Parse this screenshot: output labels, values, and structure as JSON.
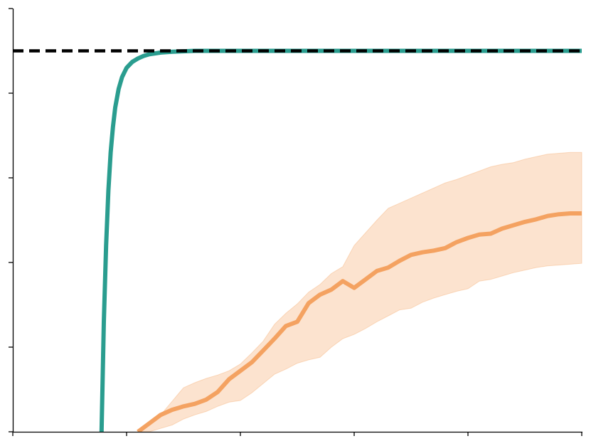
{
  "chart_data": {
    "type": "line",
    "title": "",
    "xlabel": "",
    "ylabel": "",
    "xlim": [
      0,
      5
    ],
    "ylim": [
      0,
      5
    ],
    "x_ticks": [
      0,
      1,
      2,
      3,
      4,
      5
    ],
    "y_ticks": [
      0,
      1,
      2,
      3,
      4,
      5
    ],
    "grid": false,
    "legend": "none",
    "reference_line": {
      "y": 4.5,
      "style": "dashed",
      "color": "#000000"
    },
    "series": [
      {
        "color": "#2a9d8f",
        "x": [
          0.78,
          0.8,
          0.82,
          0.84,
          0.86,
          0.88,
          0.9,
          0.93,
          0.96,
          1.0,
          1.05,
          1.1,
          1.15,
          1.2,
          1.3,
          1.4,
          1.5,
          1.6,
          1.8,
          2.0,
          3.0,
          4.0,
          5.0
        ],
        "y": [
          0.0,
          1.3,
          2.2,
          2.85,
          3.3,
          3.6,
          3.83,
          4.05,
          4.19,
          4.3,
          4.37,
          4.41,
          4.44,
          4.46,
          4.48,
          4.49,
          4.495,
          4.5,
          4.5,
          4.5,
          4.5,
          4.5,
          4.5
        ]
      },
      {
        "color": "#f4a261",
        "band_alpha": 0.3,
        "x": [
          1.1,
          1.2,
          1.3,
          1.4,
          1.5,
          1.6,
          1.7,
          1.8,
          1.9,
          2.0,
          2.1,
          2.2,
          2.3,
          2.4,
          2.5,
          2.6,
          2.7,
          2.8,
          2.9,
          3.0,
          3.1,
          3.2,
          3.3,
          3.4,
          3.5,
          3.6,
          3.7,
          3.8,
          3.9,
          4.0,
          4.1,
          4.2,
          4.3,
          4.4,
          4.5,
          4.6,
          4.7,
          4.8,
          4.9,
          5.0
        ],
        "y": [
          0.0,
          0.1,
          0.2,
          0.26,
          0.3,
          0.33,
          0.38,
          0.47,
          0.62,
          0.72,
          0.82,
          0.96,
          1.1,
          1.25,
          1.3,
          1.52,
          1.62,
          1.68,
          1.78,
          1.7,
          1.8,
          1.9,
          1.94,
          2.02,
          2.09,
          2.12,
          2.14,
          2.17,
          2.24,
          2.29,
          2.33,
          2.34,
          2.4,
          2.44,
          2.48,
          2.51,
          2.55,
          2.57,
          2.58,
          2.58
        ],
        "lower": [
          0.0,
          0.0,
          0.04,
          0.08,
          0.15,
          0.2,
          0.24,
          0.3,
          0.35,
          0.37,
          0.46,
          0.57,
          0.68,
          0.74,
          0.81,
          0.85,
          0.88,
          1.0,
          1.1,
          1.15,
          1.22,
          1.3,
          1.37,
          1.44,
          1.46,
          1.53,
          1.58,
          1.62,
          1.66,
          1.69,
          1.78,
          1.8,
          1.84,
          1.88,
          1.91,
          1.94,
          1.96,
          1.97,
          1.98,
          1.99
        ],
        "upper": [
          0.0,
          0.12,
          0.2,
          0.36,
          0.52,
          0.58,
          0.63,
          0.67,
          0.72,
          0.8,
          0.93,
          1.07,
          1.27,
          1.4,
          1.51,
          1.65,
          1.74,
          1.87,
          1.95,
          2.2,
          2.35,
          2.5,
          2.64,
          2.7,
          2.76,
          2.82,
          2.88,
          2.94,
          2.98,
          3.03,
          3.08,
          3.13,
          3.16,
          3.18,
          3.22,
          3.25,
          3.28,
          3.29,
          3.3,
          3.3
        ]
      }
    ]
  }
}
